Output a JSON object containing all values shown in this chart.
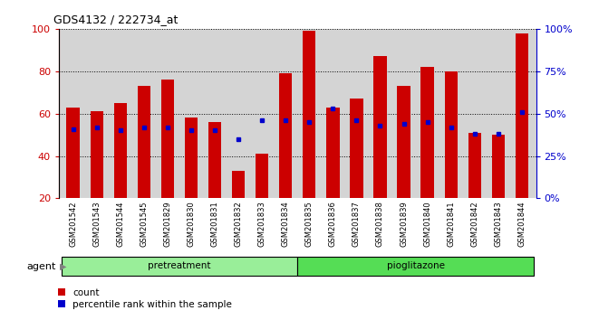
{
  "title": "GDS4132 / 222734_at",
  "samples": [
    "GSM201542",
    "GSM201543",
    "GSM201544",
    "GSM201545",
    "GSM201829",
    "GSM201830",
    "GSM201831",
    "GSM201832",
    "GSM201833",
    "GSM201834",
    "GSM201835",
    "GSM201836",
    "GSM201837",
    "GSM201838",
    "GSM201839",
    "GSM201840",
    "GSM201841",
    "GSM201842",
    "GSM201843",
    "GSM201844"
  ],
  "counts": [
    63,
    61,
    65,
    73,
    76,
    58,
    56,
    33,
    41,
    79,
    99,
    63,
    67,
    87,
    73,
    82,
    80,
    51,
    50,
    98
  ],
  "percentile_ranks": [
    41,
    42,
    40,
    42,
    42,
    40,
    40,
    35,
    46,
    46,
    45,
    53,
    46,
    43,
    44,
    45,
    42,
    38,
    38,
    51
  ],
  "pretreatment_count": 10,
  "pioglitazone_count": 10,
  "bar_color": "#cc0000",
  "pct_color": "#0000cc",
  "bg_color": "#d4d4d4",
  "pretreatment_color": "#99ee99",
  "pioglitazone_color": "#55dd55",
  "ylim_left": [
    20,
    100
  ],
  "ylim_right": [
    0,
    100
  ],
  "yticks_left": [
    20,
    40,
    60,
    80,
    100
  ],
  "yticks_right": [
    0,
    25,
    50,
    75,
    100
  ],
  "ytick_labels_right": [
    "0%",
    "25%",
    "50%",
    "75%",
    "100%"
  ],
  "bar_width": 0.55
}
